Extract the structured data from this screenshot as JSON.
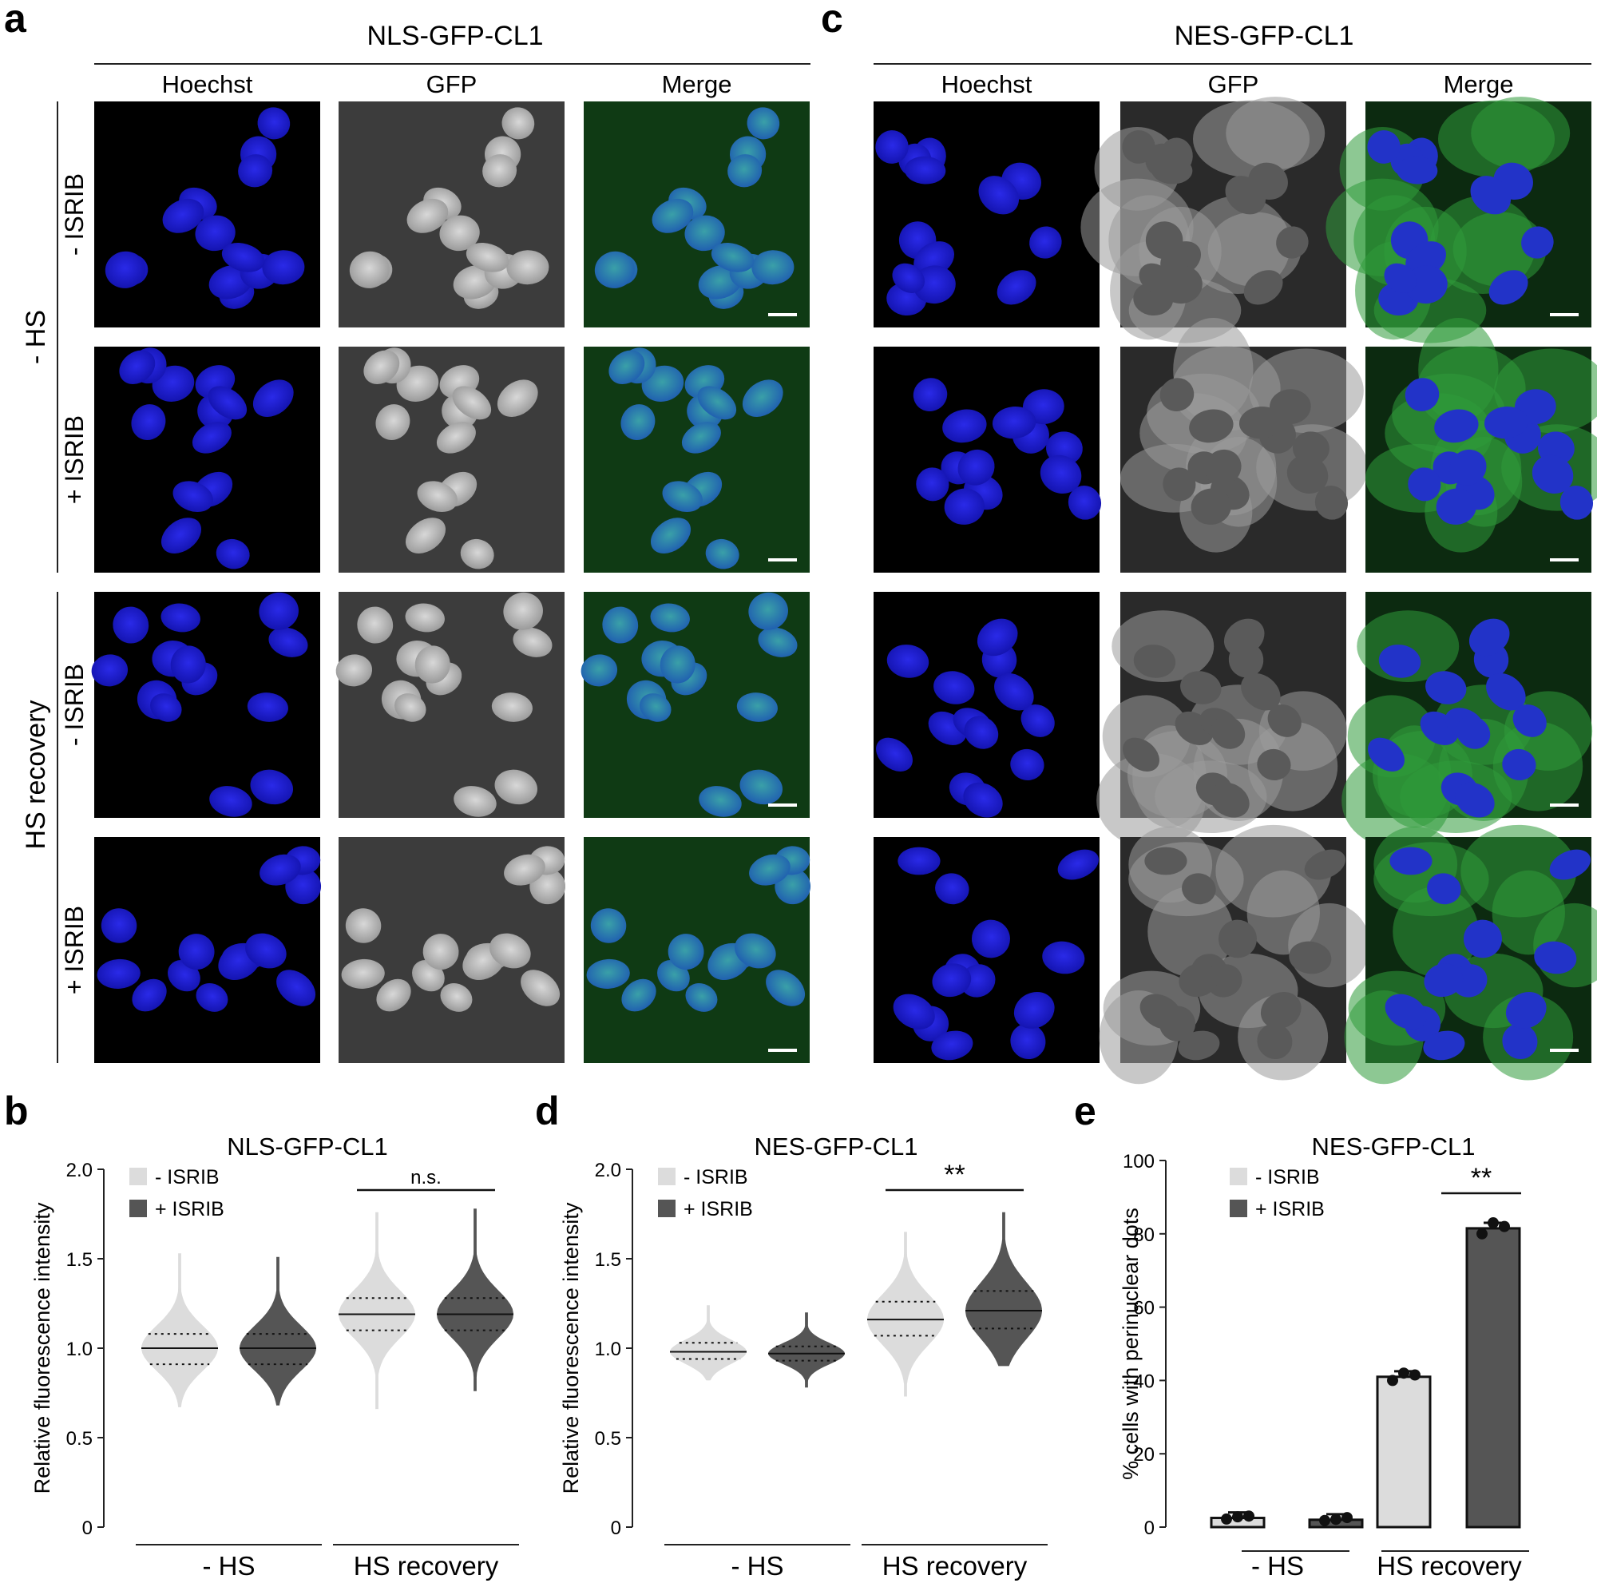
{
  "panels": {
    "a": {
      "letter": "a",
      "title": "NLS-GFP-CL1",
      "columns": [
        "Hoechst",
        "GFP",
        "Merge"
      ],
      "groups": [
        "- HS",
        "HS recovery"
      ],
      "rows": [
        "- ISRIB",
        "+ ISRIB",
        "- ISRIB",
        "+ ISRIB"
      ]
    },
    "c": {
      "letter": "c",
      "title": "NES-GFP-CL1",
      "columns": [
        "Hoechst",
        "GFP",
        "Merge"
      ]
    },
    "b": {
      "letter": "b"
    },
    "d": {
      "letter": "d"
    },
    "e": {
      "letter": "e"
    }
  },
  "colors": {
    "hoechst": "#0a0a6e",
    "gfp_gray": "#8a8a8a",
    "merge_green": "#1f7a3a",
    "minus_isrib": "#dcdcdc",
    "plus_isrib": "#555555"
  },
  "chart_data": [
    {
      "id": "b",
      "type": "violin",
      "title": "NLS-GFP-CL1",
      "ylabel": "Relative fluorescence intensity",
      "ylim": [
        0,
        2.0
      ],
      "yticks": [
        "0",
        "0.5",
        "1.0",
        "1.5",
        "2.0"
      ],
      "groups": [
        "- HS",
        "HS recovery"
      ],
      "legend": [
        "- ISRIB",
        "+ ISRIB"
      ],
      "legend_position": "top-left",
      "annotation": "n.s.",
      "series": [
        {
          "name": "- ISRIB",
          "group": "- HS",
          "median": 1.0,
          "q1": 0.91,
          "q3": 1.08,
          "min": 0.67,
          "max": 1.53
        },
        {
          "name": "+ ISRIB",
          "group": "- HS",
          "median": 1.0,
          "q1": 0.91,
          "q3": 1.08,
          "min": 0.68,
          "max": 1.51
        },
        {
          "name": "- ISRIB",
          "group": "HS recovery",
          "median": 1.19,
          "q1": 1.1,
          "q3": 1.28,
          "min": 0.66,
          "max": 1.76
        },
        {
          "name": "+ ISRIB",
          "group": "HS recovery",
          "median": 1.19,
          "q1": 1.1,
          "q3": 1.28,
          "min": 0.76,
          "max": 1.78
        }
      ]
    },
    {
      "id": "d",
      "type": "violin",
      "title": "NES-GFP-CL1",
      "ylabel": "Relative fluorescence intensity",
      "ylim": [
        0,
        2.0
      ],
      "yticks": [
        "0",
        "0.5",
        "1.0",
        "1.5",
        "2.0"
      ],
      "groups": [
        "- HS",
        "HS recovery"
      ],
      "legend": [
        "- ISRIB",
        "+ ISRIB"
      ],
      "legend_position": "top-left",
      "annotation": "**",
      "series": [
        {
          "name": "- ISRIB",
          "group": "- HS",
          "median": 0.98,
          "q1": 0.94,
          "q3": 1.03,
          "min": 0.82,
          "max": 1.24
        },
        {
          "name": "+ ISRIB",
          "group": "- HS",
          "median": 0.97,
          "q1": 0.93,
          "q3": 1.01,
          "min": 0.78,
          "max": 1.2
        },
        {
          "name": "- ISRIB",
          "group": "HS recovery",
          "median": 1.16,
          "q1": 1.07,
          "q3": 1.26,
          "min": 0.73,
          "max": 1.65
        },
        {
          "name": "+ ISRIB",
          "group": "HS recovery",
          "median": 1.21,
          "q1": 1.11,
          "q3": 1.32,
          "min": 0.9,
          "max": 1.76
        }
      ]
    },
    {
      "id": "e",
      "type": "bar",
      "title": "NES-GFP-CL1",
      "ylabel": "% cells with perinuclear dots",
      "ylim": [
        0,
        100
      ],
      "yticks": [
        "0",
        "20",
        "40",
        "60",
        "80",
        "100"
      ],
      "groups": [
        "- HS",
        "HS recovery"
      ],
      "legend": [
        "- ISRIB",
        "+ ISRIB"
      ],
      "legend_position": "top-left",
      "annotation": "**",
      "series": [
        {
          "name": "- ISRIB",
          "values": [
            2.5,
            41
          ],
          "points": [
            [
              2.2,
              2.8,
              3.0
            ],
            [
              40.0,
              42.0,
              41.5
            ]
          ]
        },
        {
          "name": "+ ISRIB",
          "values": [
            2.0,
            81.5
          ],
          "points": [
            [
              1.8,
              2.1,
              2.6
            ],
            [
              80.0,
              83.0,
              82.0
            ]
          ]
        }
      ]
    }
  ]
}
